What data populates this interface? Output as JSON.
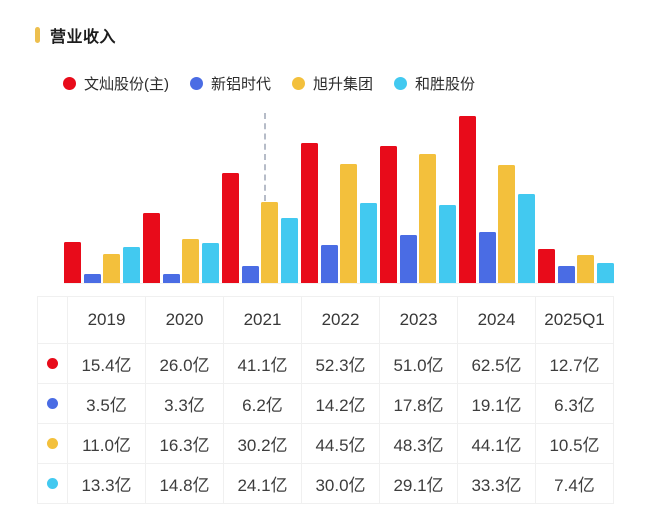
{
  "page": {
    "title": "营业收入"
  },
  "legend": [
    {
      "label": "文灿股份(主)",
      "color": "#e80b1a"
    },
    {
      "label": "新铝时代",
      "color": "#4a6ce4"
    },
    {
      "label": "旭升集团",
      "color": "#f3c03c"
    },
    {
      "label": "和胜股份",
      "color": "#42c9f0"
    }
  ],
  "chart_data": {
    "type": "bar",
    "title": "营业收入",
    "unit": "亿",
    "categories": [
      "2019",
      "2020",
      "2021",
      "2022",
      "2023",
      "2024",
      "2025Q1"
    ],
    "series": [
      {
        "name": "文灿股份(主)",
        "color": "#e80b1a",
        "values": [
          15.4,
          26.0,
          41.1,
          52.3,
          51.0,
          62.5,
          12.7
        ]
      },
      {
        "name": "新铝时代",
        "color": "#4a6ce4",
        "values": [
          3.5,
          3.3,
          6.2,
          14.2,
          17.8,
          19.1,
          6.3
        ]
      },
      {
        "name": "旭升集团",
        "color": "#f3c03c",
        "values": [
          11.0,
          16.3,
          30.2,
          44.5,
          48.3,
          44.1,
          10.5
        ]
      },
      {
        "name": "和胜股份",
        "color": "#42c9f0",
        "values": [
          13.3,
          14.8,
          24.1,
          30.0,
          29.1,
          33.3,
          7.4
        ]
      }
    ],
    "ylim": [
      0,
      65
    ],
    "grid": false,
    "legend_position": "top",
    "annotations": [
      {
        "type": "dashed-vertical-line",
        "at": "left edge of 2021 旭升集团 bar"
      }
    ]
  },
  "table": {
    "headers": [
      "2019",
      "2020",
      "2021",
      "2022",
      "2023",
      "2024",
      "2025Q1"
    ],
    "rows": [
      {
        "dot_color": "#e80b1a",
        "series": "文灿股份(主)",
        "values": [
          "15.4亿",
          "26.0亿",
          "41.1亿",
          "52.3亿",
          "51.0亿",
          "62.5亿",
          "12.7亿"
        ]
      },
      {
        "dot_color": "#4a6ce4",
        "series": "新铝时代",
        "values": [
          "3.5亿",
          "3.3亿",
          "6.2亿",
          "14.2亿",
          "17.8亿",
          "19.1亿",
          "6.3亿"
        ]
      },
      {
        "dot_color": "#f3c03c",
        "series": "旭升集团",
        "values": [
          "11.0亿",
          "16.3亿",
          "30.2亿",
          "44.5亿",
          "48.3亿",
          "44.1亿",
          "10.5亿"
        ]
      },
      {
        "dot_color": "#42c9f0",
        "series": "和胜股份",
        "values": [
          "13.3亿",
          "14.8亿",
          "24.1亿",
          "30.0亿",
          "29.1亿",
          "33.3亿",
          "7.4亿"
        ]
      }
    ]
  }
}
